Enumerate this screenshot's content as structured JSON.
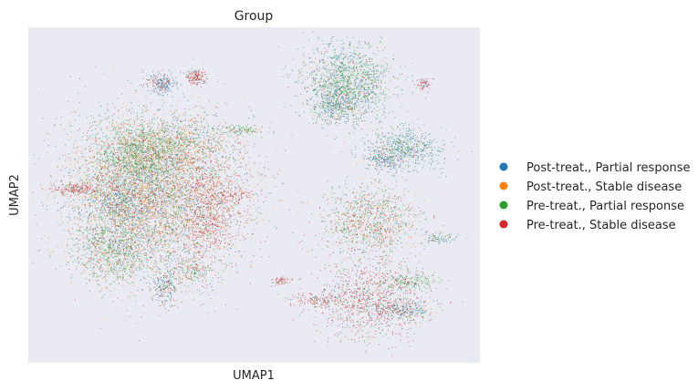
{
  "chart_data": {
    "type": "scatter",
    "title": "Group",
    "xlabel": "UMAP1",
    "ylabel": "UMAP2",
    "grid": false,
    "background_color": "#eaeaf2",
    "legend_placement": "right",
    "xlim": [
      0,
      100
    ],
    "ylim": [
      0,
      100
    ],
    "series": [
      {
        "name": "Post-treat., Partial response",
        "color": "#1f77b4"
      },
      {
        "name": "Post-treat., Stable disease",
        "color": "#ff7f0e"
      },
      {
        "name": "Pre-treat., Partial response",
        "color": "#2ca02c"
      },
      {
        "name": "Pre-treat., Stable disease",
        "color": "#d62728"
      }
    ],
    "clusters": [
      {
        "x": 27,
        "y": 50,
        "sx": 10,
        "sy": 12,
        "n": 5200,
        "w": [
          0.22,
          0.36,
          0.25,
          0.17
        ]
      },
      {
        "x": 23,
        "y": 62,
        "sx": 4.5,
        "sy": 5,
        "n": 900,
        "w": [
          0.12,
          0.08,
          0.72,
          0.08
        ]
      },
      {
        "x": 18,
        "y": 33,
        "sx": 4,
        "sy": 5,
        "n": 700,
        "w": [
          0.18,
          0.12,
          0.6,
          0.1
        ]
      },
      {
        "x": 40,
        "y": 46,
        "sx": 3.5,
        "sy": 9,
        "n": 650,
        "w": [
          0.05,
          0.15,
          0.05,
          0.75
        ]
      },
      {
        "x": 32,
        "y": 66,
        "sx": 6,
        "sy": 4,
        "n": 650,
        "w": [
          0.12,
          0.35,
          0.43,
          0.1
        ]
      },
      {
        "x": 20,
        "y": 48,
        "sx": 3.5,
        "sy": 4,
        "n": 420,
        "w": [
          0.65,
          0.15,
          0.1,
          0.1
        ]
      },
      {
        "x": 10,
        "y": 52,
        "sx": 3.2,
        "sy": 0.9,
        "n": 170,
        "w": [
          0.1,
          0.05,
          0.05,
          0.8
        ]
      },
      {
        "x": 30,
        "y": 22,
        "sx": 1.5,
        "sy": 3,
        "n": 220,
        "w": [
          0.45,
          0.1,
          0.3,
          0.15
        ]
      },
      {
        "x": 36,
        "y": 27,
        "sx": 2,
        "sy": 2,
        "n": 160,
        "w": [
          0.2,
          0.3,
          0.35,
          0.15
        ]
      },
      {
        "x": 29,
        "y": 84,
        "sx": 1.8,
        "sy": 1.6,
        "n": 220,
        "w": [
          0.72,
          0.05,
          0.05,
          0.18
        ]
      },
      {
        "x": 37,
        "y": 86,
        "sx": 1.1,
        "sy": 1.1,
        "n": 150,
        "w": [
          0.35,
          0.05,
          0.05,
          0.55
        ]
      },
      {
        "x": 47,
        "y": 70,
        "sx": 3,
        "sy": 0.8,
        "n": 120,
        "w": [
          0.1,
          0.1,
          0.75,
          0.05
        ]
      },
      {
        "x": 46,
        "y": 50,
        "sx": 3.5,
        "sy": 1,
        "n": 90,
        "w": [
          0.2,
          0.1,
          0.1,
          0.6
        ]
      },
      {
        "x": 71,
        "y": 84,
        "sx": 5,
        "sy": 6,
        "n": 1400,
        "w": [
          0.3,
          0.04,
          0.56,
          0.1
        ]
      },
      {
        "x": 68,
        "y": 78,
        "sx": 2.5,
        "sy": 3,
        "n": 300,
        "w": [
          0.55,
          0.12,
          0.25,
          0.08
        ]
      },
      {
        "x": 84,
        "y": 64,
        "sx": 4.5,
        "sy": 3.2,
        "n": 650,
        "w": [
          0.52,
          0.05,
          0.35,
          0.08
        ]
      },
      {
        "x": 79,
        "y": 61,
        "sx": 1.5,
        "sy": 1.6,
        "n": 120,
        "w": [
          0.8,
          0.05,
          0.1,
          0.05
        ]
      },
      {
        "x": 88,
        "y": 84,
        "sx": 0.9,
        "sy": 1,
        "n": 60,
        "w": [
          0.1,
          0.05,
          0.05,
          0.8
        ]
      },
      {
        "x": 76,
        "y": 42,
        "sx": 5.5,
        "sy": 6,
        "n": 1000,
        "w": [
          0.14,
          0.23,
          0.38,
          0.25
        ]
      },
      {
        "x": 92,
        "y": 37,
        "sx": 2,
        "sy": 1,
        "n": 80,
        "w": [
          0.5,
          0.1,
          0.3,
          0.1
        ]
      },
      {
        "x": 76,
        "y": 18,
        "sx": 6,
        "sy": 6,
        "n": 1000,
        "w": [
          0.14,
          0.06,
          0.25,
          0.55
        ]
      },
      {
        "x": 84,
        "y": 15,
        "sx": 3,
        "sy": 1.5,
        "n": 200,
        "w": [
          0.5,
          0.1,
          0.25,
          0.15
        ]
      },
      {
        "x": 85,
        "y": 24,
        "sx": 3,
        "sy": 1.4,
        "n": 160,
        "w": [
          0.1,
          0.05,
          0.75,
          0.1
        ]
      },
      {
        "x": 65,
        "y": 18,
        "sx": 3.5,
        "sy": 1,
        "n": 150,
        "w": [
          0.15,
          0.1,
          0.1,
          0.65
        ]
      },
      {
        "x": 56,
        "y": 24,
        "sx": 1.4,
        "sy": 0.6,
        "n": 60,
        "w": [
          0.05,
          0.05,
          0.05,
          0.85
        ]
      }
    ]
  }
}
